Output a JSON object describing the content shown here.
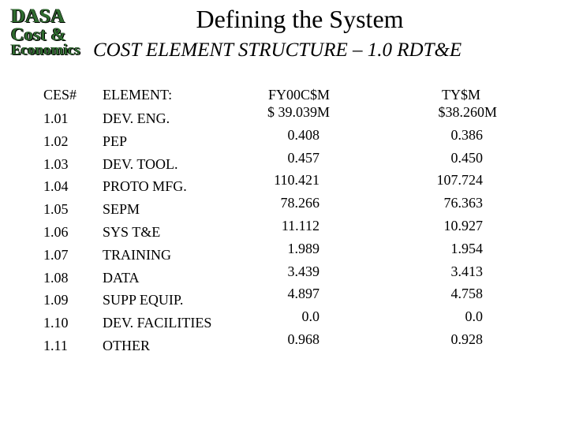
{
  "logo": {
    "lines": [
      "DASA",
      "Cost &",
      "Economics"
    ]
  },
  "header": {
    "title": "Defining the System",
    "subtitle": "COST ELEMENT STRUCTURE – 1.0 RDT&E"
  },
  "table": {
    "columns": [
      "CES#",
      "ELEMENT:",
      "FY00C$M",
      "TY$M"
    ],
    "rows": [
      [
        "1.01",
        "DEV. ENG.",
        "$ 39.039M",
        "$38.260M"
      ],
      [
        "1.02",
        "PEP",
        "0.408",
        "0.386"
      ],
      [
        "1.03",
        "DEV. TOOL.",
        "0.457",
        "0.450"
      ],
      [
        "1.04",
        "PROTO MFG.",
        "110.421",
        "107.724"
      ],
      [
        "1.05",
        "SEPM",
        "78.266",
        "76.363"
      ],
      [
        "1.06",
        "SYS T&E",
        "11.112",
        "10.927"
      ],
      [
        "1.07",
        "TRAINING",
        "1.989",
        "1.954"
      ],
      [
        "1.08",
        "DATA",
        "3.439",
        "3.413"
      ],
      [
        "1.09",
        "SUPP EQUIP.",
        "4.897",
        "4.758"
      ],
      [
        "1.10",
        "DEV. FACILITIES",
        "0.0",
        "0.0"
      ],
      [
        "1.11",
        "OTHER",
        "0.968",
        "0.928"
      ]
    ]
  }
}
